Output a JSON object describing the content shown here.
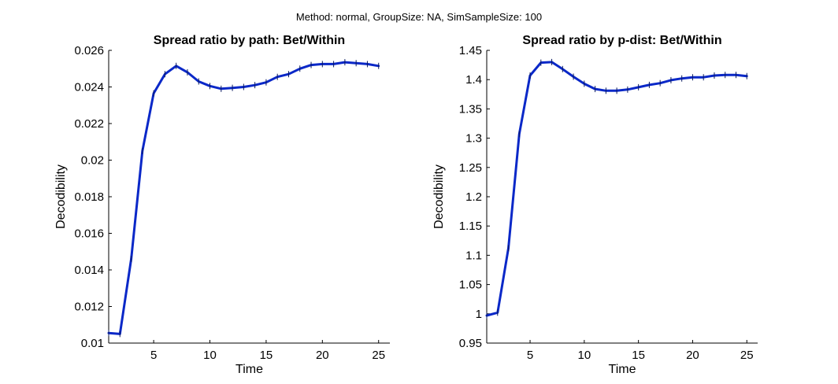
{
  "figure": {
    "suptitle": "Method: normal, GroupSize: NA, SimSampleSize: 100"
  },
  "colors": {
    "line": "#0a28c8",
    "axis": "#000000",
    "background": "#ffffff"
  },
  "chart_data": [
    {
      "type": "line",
      "title": "Spread ratio by path: Bet/Within",
      "xlabel": "Time",
      "ylabel": "Decodibility",
      "xlim": [
        1,
        26
      ],
      "ylim": [
        0.01,
        0.026
      ],
      "xticks": [
        5,
        10,
        15,
        20,
        25
      ],
      "xtick_labels": [
        "5",
        "10",
        "15",
        "20",
        "25"
      ],
      "yticks": [
        0.01,
        0.012,
        0.014,
        0.016,
        0.018,
        0.02,
        0.022,
        0.024,
        0.026
      ],
      "ytick_labels": [
        "0.01",
        "0.012",
        "0.014",
        "0.016",
        "0.018",
        "0.02",
        "0.022",
        "0.024",
        "0.026"
      ],
      "grid": false,
      "series": [
        {
          "x": [
            1,
            2,
            3,
            4,
            5,
            6,
            7,
            8,
            9,
            10,
            11,
            12,
            13,
            14,
            15,
            16,
            17,
            18,
            19,
            20,
            21,
            22,
            23,
            24,
            25
          ],
          "y": [
            0.01055,
            0.0105,
            0.0146,
            0.0205,
            0.02365,
            0.0247,
            0.02515,
            0.0248,
            0.0243,
            0.02405,
            0.0239,
            0.02395,
            0.024,
            0.0241,
            0.02425,
            0.02455,
            0.0247,
            0.025,
            0.0252,
            0.02525,
            0.02525,
            0.02535,
            0.0253,
            0.02525,
            0.02515
          ]
        }
      ]
    },
    {
      "type": "line",
      "title": "Spread ratio by p-dist: Bet/Within",
      "xlabel": "Time",
      "ylabel": "Decodibility",
      "xlim": [
        1,
        26
      ],
      "ylim": [
        0.95,
        1.45
      ],
      "xticks": [
        5,
        10,
        15,
        20,
        25
      ],
      "xtick_labels": [
        "5",
        "10",
        "15",
        "20",
        "25"
      ],
      "yticks": [
        0.95,
        1.0,
        1.05,
        1.1,
        1.15,
        1.2,
        1.25,
        1.3,
        1.35,
        1.4,
        1.45
      ],
      "ytick_labels": [
        "0.95",
        "1",
        "1.05",
        "1.1",
        "1.15",
        "1.2",
        "1.25",
        "1.3",
        "1.35",
        "1.4",
        "1.45"
      ],
      "grid": false,
      "series": [
        {
          "x": [
            1,
            2,
            3,
            4,
            5,
            6,
            7,
            8,
            9,
            10,
            11,
            12,
            13,
            14,
            15,
            16,
            17,
            18,
            19,
            20,
            21,
            22,
            23,
            24,
            25
          ],
          "y": [
            0.997,
            1.002,
            1.112,
            1.307,
            1.407,
            1.429,
            1.43,
            1.418,
            1.405,
            1.393,
            1.384,
            1.381,
            1.381,
            1.383,
            1.387,
            1.391,
            1.394,
            1.399,
            1.402,
            1.404,
            1.404,
            1.407,
            1.408,
            1.408,
            1.406
          ]
        }
      ]
    }
  ]
}
